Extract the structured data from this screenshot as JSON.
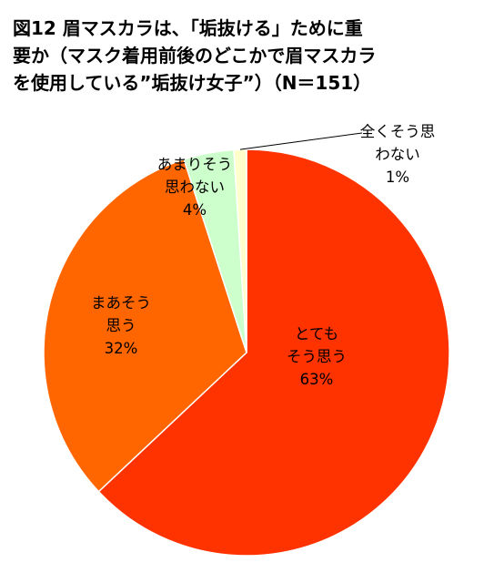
{
  "chart_data": {
    "type": "pie",
    "title_lines": [
      "図12 眉マスカラは、「垢抜ける」ために重",
      "要か（マスク着用前後のどこかで眉マスカラ",
      "を使用している”垢抜け女子”）（N＝151）"
    ],
    "slices": [
      {
        "label_lines": [
          "とても",
          "そう思う"
        ],
        "value": 63,
        "value_label": "63%",
        "color": "#ff3300"
      },
      {
        "label_lines": [
          "まあそう",
          "思う"
        ],
        "value": 32,
        "value_label": "32%",
        "color": "#ff6600"
      },
      {
        "label_lines": [
          "あまりそう",
          "思わない"
        ],
        "value": 4,
        "value_label": "4%",
        "color": "#ccffcc"
      },
      {
        "label_lines": [
          "全くそう思",
          "わない"
        ],
        "value": 1,
        "value_label": "1%",
        "color": "#ffffcc"
      }
    ],
    "start": "12 o'clock",
    "direction": "clockwise",
    "legend": "none"
  }
}
